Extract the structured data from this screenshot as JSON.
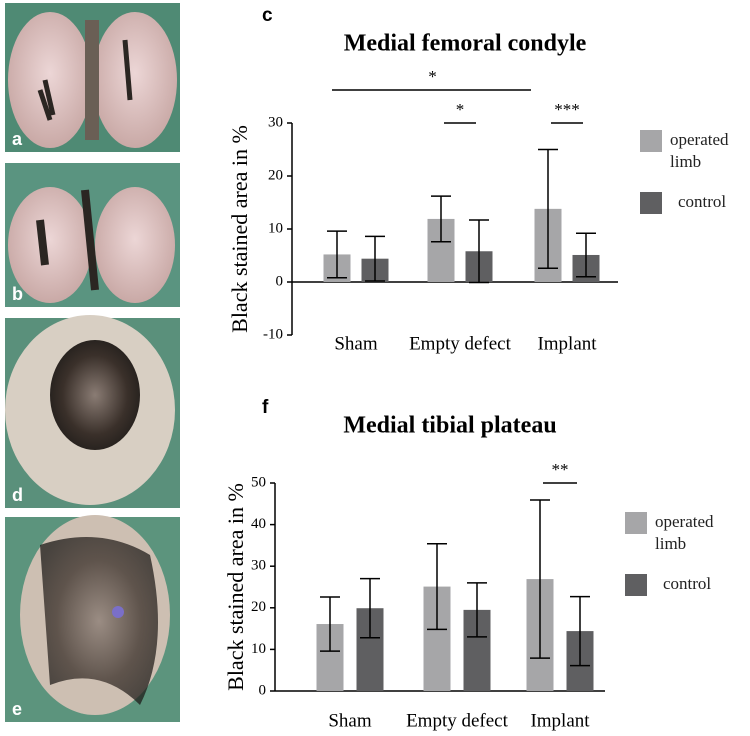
{
  "panels": [
    "a",
    "b",
    "d",
    "e"
  ],
  "chart_data": [
    {
      "type": "bar",
      "panel": "c",
      "title": "Medial femoral condyle",
      "ylabel": "Black stained area in %",
      "categories": [
        "Sham",
        "Empty defect",
        "Implant"
      ],
      "series": [
        {
          "name": "operated limb",
          "color": "#a6a6a8",
          "values": [
            5.2,
            11.9,
            13.8
          ],
          "errors": [
            4.4,
            4.3,
            11.2
          ]
        },
        {
          "name": "control",
          "color": "#5f5f61",
          "values": [
            4.4,
            5.8,
            5.1
          ],
          "errors": [
            4.2,
            5.9,
            4.1
          ]
        }
      ],
      "ylim": [
        -10,
        30
      ],
      "yticks": [
        -10,
        0,
        10,
        20,
        30
      ],
      "annotations": [
        {
          "text": "*",
          "from": [
            0,
            0
          ],
          "to": [
            0,
            2
          ]
        },
        {
          "text": "*",
          "from": [
            0,
            1
          ],
          "to": [
            1,
            1
          ]
        },
        {
          "text": "***",
          "from": [
            0,
            2
          ],
          "to": [
            1,
            2
          ]
        }
      ]
    },
    {
      "type": "bar",
      "panel": "f",
      "title": "Medial tibial plateau",
      "ylabel": "Black stained area in %",
      "categories": [
        "Sham",
        "Empty defect",
        "Implant"
      ],
      "series": [
        {
          "name": "operated limb",
          "color": "#a6a6a8",
          "values": [
            16.1,
            25.1,
            26.9
          ],
          "errors": [
            6.5,
            10.3,
            19
          ]
        },
        {
          "name": "control",
          "color": "#5f5f61",
          "values": [
            19.9,
            19.5,
            14.4
          ],
          "errors": [
            7.1,
            6.5,
            8.3
          ]
        }
      ],
      "ylim": [
        0,
        50
      ],
      "yticks": [
        0,
        10,
        20,
        30,
        40,
        50
      ],
      "annotations": [
        {
          "text": "**",
          "from": [
            0,
            2
          ],
          "to": [
            1,
            2
          ]
        }
      ]
    }
  ]
}
